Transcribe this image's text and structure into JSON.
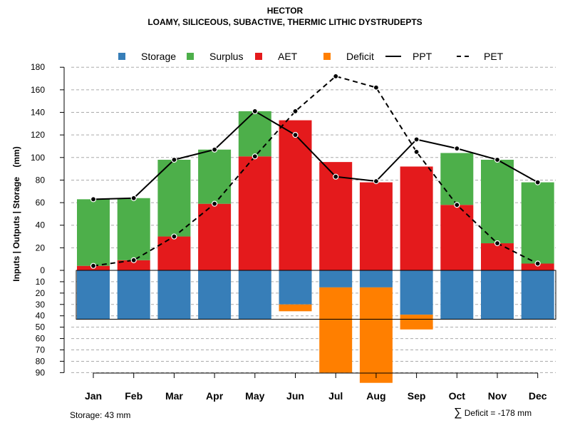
{
  "title": "HECTOR",
  "subtitle": "LOAMY, SILICEOUS, SUBACTIVE, THERMIC LITHIC DYSTRUDEPTS",
  "footer": {
    "storage_note": "Storage: 43 mm",
    "deficit_symbol": "∑",
    "deficit_note": "Deficit = -178 mm"
  },
  "colors": {
    "storage": "#377EB8",
    "surplus": "#4DAF4A",
    "aet": "#E41A1C",
    "deficit": "#FF7F00",
    "line": "#000000",
    "grid": "#aaaaaa"
  },
  "chart_data": {
    "type": "bar",
    "title": "HECTOR",
    "ylabel": "Inputs | Outputs | Storage    (mm)",
    "categories": [
      "Jan",
      "Feb",
      "Mar",
      "Apr",
      "May",
      "Jun",
      "Jul",
      "Aug",
      "Sep",
      "Oct",
      "Nov",
      "Dec"
    ],
    "upper_ylim": [
      0,
      180
    ],
    "upper_ticks": [
      0,
      20,
      40,
      60,
      80,
      100,
      120,
      140,
      160,
      180
    ],
    "lower_ylim": [
      0,
      90
    ],
    "lower_ticks": [
      0,
      10,
      20,
      30,
      40,
      50,
      60,
      70,
      80,
      90
    ],
    "legend": [
      {
        "name": "Storage",
        "kind": "box",
        "color": "#377EB8"
      },
      {
        "name": "Surplus",
        "kind": "box",
        "color": "#4DAF4A"
      },
      {
        "name": "AET",
        "kind": "box",
        "color": "#E41A1C"
      },
      {
        "name": "Deficit",
        "kind": "box",
        "color": "#FF7F00"
      },
      {
        "name": "PPT",
        "kind": "solid"
      },
      {
        "name": "PET",
        "kind": "dashed"
      }
    ],
    "series": [
      {
        "name": "AET",
        "values": [
          4,
          9,
          30,
          59,
          101,
          133,
          96,
          78,
          92,
          58,
          24,
          6
        ]
      },
      {
        "name": "Surplus",
        "values": [
          59,
          55,
          68,
          48,
          40,
          0,
          0,
          0,
          0,
          46,
          74,
          72
        ]
      },
      {
        "name": "PPT",
        "values": [
          63,
          64,
          98,
          107,
          141,
          120,
          83,
          79,
          116,
          108,
          98,
          78
        ]
      },
      {
        "name": "PET",
        "values": [
          4,
          9,
          30,
          59,
          101,
          141,
          172,
          162,
          105,
          58,
          24,
          6
        ]
      },
      {
        "name": "Storage",
        "values": [
          43,
          43,
          43,
          43,
          43,
          30,
          15,
          15,
          39,
          43,
          43,
          43
        ]
      },
      {
        "name": "Deficit",
        "values": [
          0,
          0,
          0,
          0,
          0,
          6,
          75,
          84,
          13,
          0,
          0,
          0
        ]
      }
    ],
    "storage_capacity": 43
  }
}
